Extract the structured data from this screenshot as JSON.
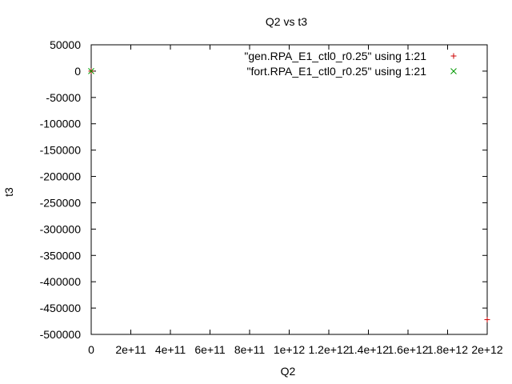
{
  "chart_data": {
    "type": "scatter",
    "title": "Q2 vs t3",
    "xlabel": "Q2",
    "ylabel": "t3",
    "xlim": [
      0,
      2000000000000
    ],
    "ylim": [
      -500000,
      50000
    ],
    "x_ticks": [
      {
        "value": 0,
        "label": "0"
      },
      {
        "value": 200000000000,
        "label": "2e+11"
      },
      {
        "value": 400000000000,
        "label": "4e+11"
      },
      {
        "value": 600000000000,
        "label": "6e+11"
      },
      {
        "value": 800000000000,
        "label": "8e+11"
      },
      {
        "value": 1000000000000,
        "label": "1e+12"
      },
      {
        "value": 1200000000000,
        "label": "1.2e+12"
      },
      {
        "value": 1400000000000,
        "label": "1.4e+12"
      },
      {
        "value": 1600000000000,
        "label": "1.6e+12"
      },
      {
        "value": 1800000000000,
        "label": "1.8e+12"
      },
      {
        "value": 2000000000000,
        "label": "2e+12"
      }
    ],
    "y_ticks": [
      {
        "value": 50000,
        "label": "50000"
      },
      {
        "value": 0,
        "label": "0"
      },
      {
        "value": -50000,
        "label": "-50000"
      },
      {
        "value": -100000,
        "label": "-100000"
      },
      {
        "value": -150000,
        "label": "-150000"
      },
      {
        "value": -200000,
        "label": "-200000"
      },
      {
        "value": -250000,
        "label": "-250000"
      },
      {
        "value": -300000,
        "label": "-300000"
      },
      {
        "value": -350000,
        "label": "-350000"
      },
      {
        "value": -400000,
        "label": "-400000"
      },
      {
        "value": -450000,
        "label": "-450000"
      },
      {
        "value": -500000,
        "label": "-500000"
      }
    ],
    "grid": false,
    "legend_position": "top-right",
    "series": [
      {
        "name": "\"gen.RPA_E1_ctl0_r0.25\" using 1:21",
        "marker": "plus",
        "color": "#cc0000",
        "points": [
          {
            "x": 0,
            "y": 0
          },
          {
            "x": 2000000000000,
            "y": -472000
          }
        ]
      },
      {
        "name": "\"fort.RPA_E1_ctl0_r0.25\" using 1:21",
        "marker": "cross",
        "color": "#009900",
        "points": [
          {
            "x": 0,
            "y": 0
          }
        ]
      }
    ]
  }
}
